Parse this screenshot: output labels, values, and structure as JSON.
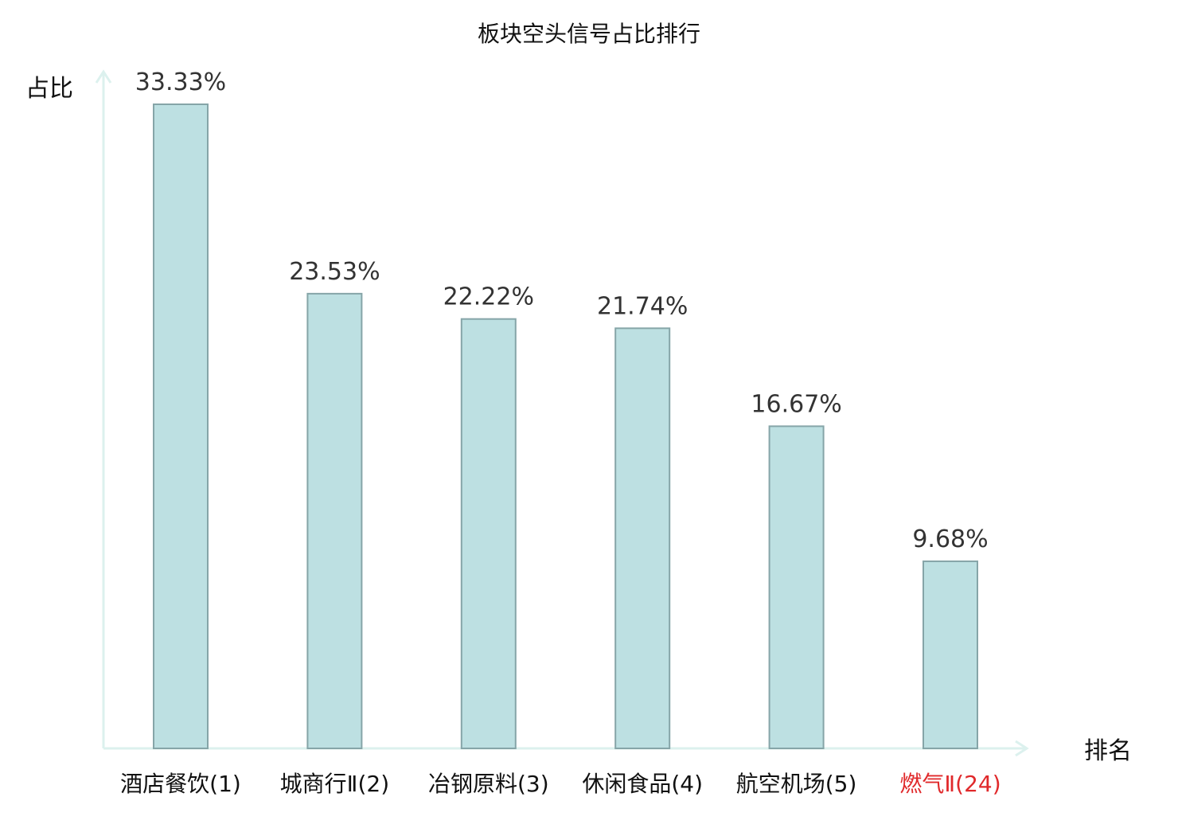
{
  "chart_data": {
    "type": "bar",
    "title": "板块空头信号占比排行",
    "ylabel": "占比",
    "xlabel": "排名",
    "categories": [
      "酒店餐饮(1)",
      "城商行Ⅱ(2)",
      "冶钢原料(3)",
      "休闲食品(4)",
      "航空机场(5)",
      "燃气Ⅱ(24)"
    ],
    "values": [
      33.33,
      23.53,
      22.22,
      21.74,
      16.67,
      9.68
    ],
    "value_labels": [
      "33.33%",
      "23.53%",
      "22.22%",
      "21.74%",
      "16.67%",
      "9.68%"
    ],
    "highlight_index": 5,
    "ylim": [
      0,
      33.33
    ],
    "grid": false,
    "colors": {
      "bar_fill": "#bde0e2",
      "bar_stroke": "#86a5a8",
      "axis": "#dcf1ee",
      "highlight_text": "#e0292b",
      "tick_text": "#111111",
      "value_text": "#333333"
    }
  }
}
